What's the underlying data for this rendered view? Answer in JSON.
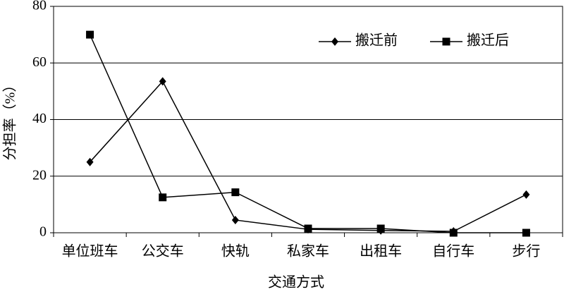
{
  "chart_data": {
    "type": "line",
    "categories": [
      "单位班车",
      "公交车",
      "快轨",
      "私家车",
      "出租车",
      "自行车",
      "步行"
    ],
    "series": [
      {
        "name": "搬迁前",
        "color": "#000000",
        "marker": "diamond",
        "values": [
          25,
          53.5,
          4.5,
          1.2,
          0.8,
          0.5,
          13.5
        ]
      },
      {
        "name": "搬迁后",
        "color": "#000000",
        "marker": "square",
        "values": [
          70,
          12.5,
          14.3,
          1.5,
          1.5,
          0,
          0
        ]
      }
    ],
    "ylim": [
      0,
      80
    ],
    "yticks": [
      0,
      20,
      40,
      60,
      80
    ],
    "grid": true,
    "xlabel": "交通方式",
    "ylabel": "分担率（%）",
    "legend": "top-right"
  }
}
